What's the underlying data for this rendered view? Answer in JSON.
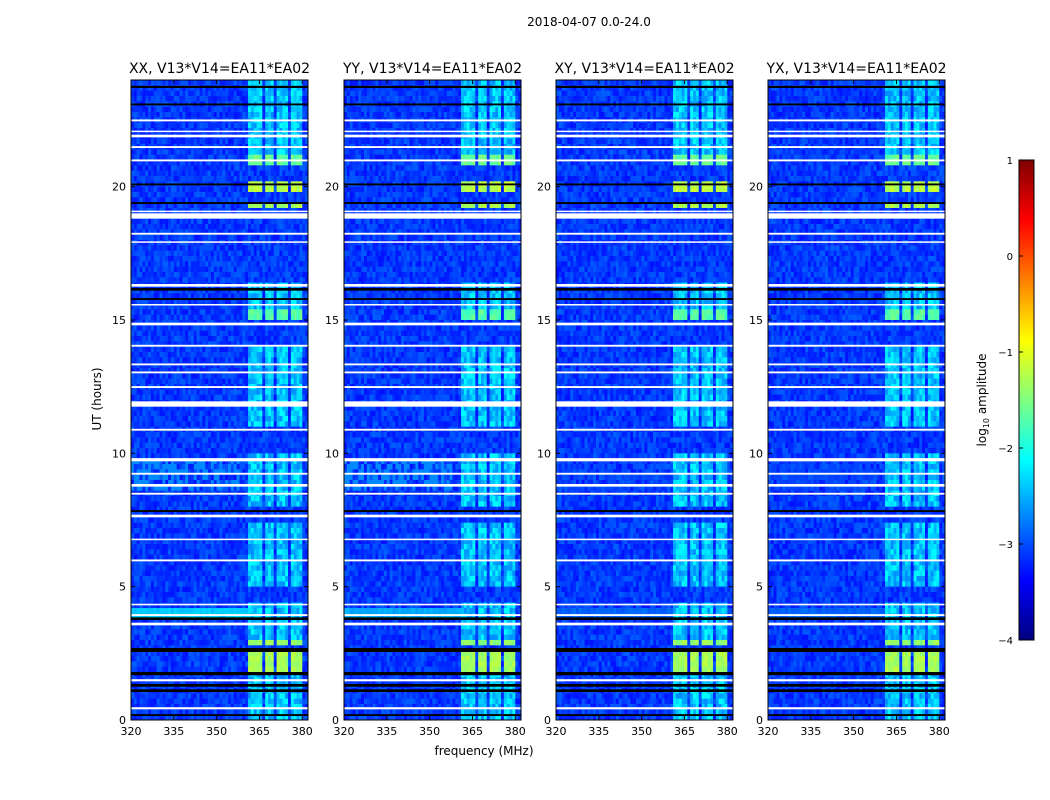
{
  "chart_data": {
    "type": "heatmap",
    "title": "2018-04-07 0.0-24.0",
    "xlabel": "frequency (MHz)",
    "ylabel": "UT (hours)",
    "xlim": [
      320,
      382
    ],
    "ylim": [
      0,
      24
    ],
    "x_ticks": [
      320,
      335,
      350,
      365,
      380
    ],
    "y_ticks": [
      0,
      5,
      10,
      15,
      20
    ],
    "colorbar": {
      "label": "log10 amplitude",
      "label_main": "log",
      "label_sub": "10",
      "label_rest": " amplitude",
      "range": [
        -4,
        1
      ],
      "ticks": [
        1,
        0,
        -1,
        -2,
        -3,
        -4
      ],
      "tick_labels": [
        "1",
        "0",
        "−1",
        "−2",
        "−3",
        "−4"
      ],
      "colormap": [
        "#00007f",
        "#0000ff",
        "#007fff",
        "#00ffff",
        "#7fff7f",
        "#ffff00",
        "#ff7f00",
        "#ff0000",
        "#7f0000"
      ]
    },
    "panels": [
      {
        "title": "XX, V13*V14=EA11*EA02",
        "low_band_strength": 1.0,
        "left_band_strength": 1.0
      },
      {
        "title": "YY, V13*V14=EA11*EA02",
        "low_band_strength": 0.8,
        "left_band_strength": 1.0
      },
      {
        "title": "XY, V13*V14=EA11*EA02",
        "low_band_strength": 0.3,
        "left_band_strength": 0.3
      },
      {
        "title": "YX, V13*V14=EA11*EA02",
        "low_band_strength": 0.3,
        "left_band_strength": 0.3
      }
    ],
    "background_level": -3.1,
    "rfi_bands_mhz": [
      [
        361,
        366
      ],
      [
        367,
        370
      ],
      [
        371,
        375
      ],
      [
        376,
        380
      ]
    ],
    "strong_rfi_hours": [
      {
        "range": [
          1.8,
          2.6
        ],
        "level": -1.3
      },
      {
        "range": [
          2.8,
          3.0
        ],
        "level": -1.4
      },
      {
        "range": [
          19.2,
          19.5
        ],
        "level": -1.3
      },
      {
        "range": [
          19.9,
          20.3
        ],
        "level": -1.2
      },
      {
        "range": [
          20.8,
          21.3
        ],
        "level": -1.6
      },
      {
        "range": [
          15.0,
          15.4
        ],
        "level": -1.7
      }
    ],
    "weak_rfi_hours": [
      [
        0,
        1.8
      ],
      [
        3.0,
        4.5
      ],
      [
        5.0,
        7.5
      ],
      [
        8.0,
        10.0
      ],
      [
        11.0,
        14.0
      ],
      [
        15.4,
        16.5
      ],
      [
        21.3,
        24.0
      ]
    ],
    "flagged_white_hours": [
      [
        0.4,
        0.48
      ],
      [
        1.45,
        1.53
      ],
      [
        3.55,
        3.65
      ],
      [
        3.9,
        3.97
      ],
      [
        4.3,
        4.36
      ],
      [
        5.95,
        6.02
      ],
      [
        6.75,
        6.8
      ],
      [
        7.6,
        7.7
      ],
      [
        8.45,
        8.52
      ],
      [
        8.75,
        8.85
      ],
      [
        9.2,
        9.27
      ],
      [
        9.7,
        9.82
      ],
      [
        10.85,
        10.92
      ],
      [
        11.75,
        11.95
      ],
      [
        12.45,
        12.52
      ],
      [
        13.0,
        13.07
      ],
      [
        13.3,
        13.37
      ],
      [
        14.0,
        14.07
      ],
      [
        14.8,
        14.9
      ],
      [
        15.55,
        15.6
      ],
      [
        16.25,
        16.35
      ],
      [
        17.9,
        17.95
      ],
      [
        18.2,
        18.27
      ],
      [
        18.8,
        19.0
      ],
      [
        19.05,
        19.1
      ],
      [
        20.95,
        21.02
      ],
      [
        21.45,
        21.52
      ],
      [
        21.85,
        21.95
      ],
      [
        22.05,
        22.1
      ],
      [
        22.45,
        22.52
      ]
    ],
    "flagged_black_hours": [
      [
        0.15,
        0.22
      ],
      [
        1.05,
        1.15
      ],
      [
        1.25,
        1.35
      ],
      [
        1.68,
        1.8
      ],
      [
        2.55,
        2.7
      ],
      [
        3.75,
        3.85
      ],
      [
        7.8,
        7.87
      ],
      [
        15.75,
        15.82
      ],
      [
        16.1,
        16.2
      ],
      [
        19.35,
        19.42
      ],
      [
        20.05,
        20.12
      ],
      [
        23.05,
        23.12
      ],
      [
        23.7,
        23.78
      ]
    ],
    "low_freq_band": {
      "range_hours": [
        3.8,
        4.15
      ],
      "freq_max_mhz": 362,
      "level": -2.4
    },
    "left_freq_streaks": {
      "range_hours": [
        8.6,
        9.9
      ],
      "freq_max_mhz": 358,
      "level": -2.7
    }
  }
}
